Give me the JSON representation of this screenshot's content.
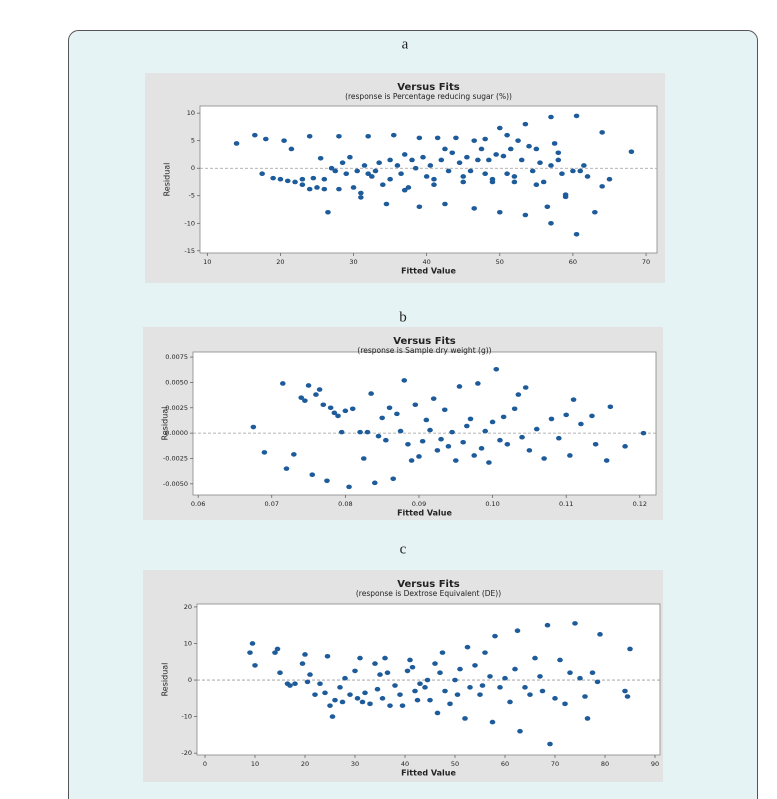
{
  "chart_data": [
    {
      "type": "scatter",
      "label": "a",
      "title": "Versus Fits",
      "subtitle": "(response is Percentage reducing sugar (%))",
      "x_label": "Fitted Value",
      "y_label": "Residual",
      "color": "#1d5b9a",
      "hline": 0,
      "xlim": [
        9,
        71.5
      ],
      "ylim": [
        -15.4,
        11.3
      ],
      "xticks": [
        10,
        20,
        30,
        40,
        50,
        60,
        70
      ],
      "yticks": [
        -15,
        -10,
        -5,
        0,
        5,
        10
      ],
      "x": [
        14,
        16.5,
        18,
        17.5,
        19,
        20,
        20.5,
        21,
        21.5,
        22,
        23,
        23,
        24,
        24,
        24.5,
        25,
        25.5,
        26,
        26,
        26.5,
        27,
        27.5,
        28,
        28,
        28.5,
        29,
        29.5,
        30,
        30.5,
        31,
        31,
        31.5,
        32,
        32,
        32.5,
        33,
        33.5,
        34,
        34.5,
        35,
        35,
        35.5,
        36,
        36.5,
        37,
        37,
        37.5,
        38,
        38.5,
        39,
        39,
        39.5,
        40,
        40.5,
        41,
        41,
        41.5,
        42,
        42.5,
        42.5,
        43,
        43.5,
        44,
        44.5,
        45,
        45,
        45.5,
        46,
        46.5,
        46.5,
        47,
        47.5,
        48,
        48,
        48.5,
        49,
        49,
        49.5,
        50,
        50,
        50.5,
        51,
        51,
        51.5,
        52,
        52,
        52.5,
        53,
        53.5,
        53.5,
        54,
        54.5,
        55,
        55,
        55.5,
        56,
        56.5,
        57,
        57,
        57,
        57.5,
        58,
        58,
        58.5,
        59,
        59,
        60,
        60.5,
        60.5,
        61,
        61.5,
        62,
        63,
        64,
        64,
        65,
        68
      ],
      "values": [
        4.5,
        6,
        5.3,
        -1,
        -1.8,
        -2,
        5,
        -2.3,
        3.5,
        -2.5,
        -3,
        -2,
        -3.8,
        5.8,
        -1.8,
        -3.5,
        1.8,
        -2,
        -3.8,
        -8,
        0,
        -0.5,
        -3.8,
        5.8,
        1,
        -1,
        2,
        -3.5,
        -0.5,
        -4.5,
        -5.3,
        0.5,
        -1,
        5.8,
        -1.5,
        -0.5,
        1,
        -3,
        -6.5,
        1.5,
        -2,
        6,
        0.5,
        -1,
        2.5,
        -4,
        -3.5,
        1.5,
        0,
        -7,
        5.5,
        2,
        -1.5,
        0.5,
        -2,
        -3,
        5.5,
        1.5,
        3.5,
        -6.5,
        -0.5,
        2.8,
        5.5,
        1,
        -1.5,
        -2.5,
        2,
        -0.5,
        5,
        -7.3,
        1.5,
        3.5,
        -1,
        5.3,
        1.5,
        -2,
        -2.5,
        2.5,
        7.3,
        -8,
        2.2,
        -1,
        6,
        3.5,
        -2.5,
        -1.5,
        5,
        1.5,
        -8.5,
        8,
        4,
        -0.5,
        3.5,
        -3,
        1,
        -2.5,
        -7,
        0.5,
        9.3,
        -10,
        4.5,
        2.8,
        1.5,
        -1,
        -4.8,
        -5.2,
        -0.5,
        9.5,
        -12,
        -0.5,
        0.5,
        -1.5,
        -8,
        6.5,
        -3.3,
        -2,
        3
      ]
    },
    {
      "type": "scatter",
      "label": "b",
      "title": "Versus Fits",
      "subtitle": "(response is Sample dry weight (g))",
      "x_label": "Fitted Value",
      "y_label": "Residual",
      "color": "#1d5b9a",
      "hline": 0,
      "xlim": [
        0.0593,
        0.1222
      ],
      "ylim": [
        -0.0061,
        0.008
      ],
      "xticks": [
        0.06,
        0.07,
        0.08,
        0.09,
        {
          "value": 0.1,
          "label": "0.10"
        },
        0.11,
        0.12
      ],
      "yticks": [
        {
          "value": -0.005,
          "label": "-0.0050"
        },
        {
          "value": -0.0025,
          "label": "-0.0025"
        },
        {
          "value": 0,
          "label": "0.0000"
        },
        {
          "value": 0.0025,
          "label": "0.0025"
        },
        {
          "value": 0.005,
          "label": "0.0050"
        },
        {
          "value": 0.0075,
          "label": "0.0075"
        }
      ],
      "x": [
        0.0675,
        0.069,
        0.0715,
        0.072,
        0.073,
        0.074,
        0.0745,
        0.075,
        0.0755,
        0.076,
        0.0765,
        0.077,
        0.0775,
        0.078,
        0.0785,
        0.079,
        0.0795,
        0.08,
        0.0805,
        0.081,
        0.082,
        0.0825,
        0.083,
        0.0835,
        0.084,
        0.0845,
        0.085,
        0.0855,
        0.086,
        0.0865,
        0.087,
        0.0875,
        0.088,
        0.0885,
        0.089,
        0.0895,
        0.09,
        0.0905,
        0.091,
        0.0915,
        0.092,
        0.0925,
        0.093,
        0.0935,
        0.094,
        0.0945,
        0.095,
        0.0955,
        0.096,
        0.0965,
        0.097,
        0.0975,
        0.098,
        0.0985,
        0.099,
        0.0995,
        0.1,
        0.1005,
        0.101,
        0.1015,
        0.102,
        0.103,
        0.1035,
        0.104,
        0.1045,
        0.105,
        0.106,
        0.107,
        0.108,
        0.109,
        0.11,
        0.1105,
        0.111,
        0.112,
        0.1135,
        0.114,
        0.1155,
        0.116,
        0.118,
        0.1205
      ],
      "values": [
        0.0006,
        -0.0019,
        0.0049,
        -0.0035,
        -0.0021,
        0.0035,
        0.0032,
        0.0047,
        -0.0041,
        0.0038,
        0.0043,
        0.0028,
        -0.0047,
        0.0025,
        0.002,
        0.0017,
        0.0001,
        0.0022,
        -0.0053,
        0.0024,
        0.0001,
        -0.0025,
        0.0001,
        0.0039,
        -0.0049,
        -0.0003,
        0.0015,
        -0.0007,
        0.0025,
        -0.0045,
        0.0019,
        0.0002,
        0.0052,
        -0.0011,
        -0.0027,
        0.0028,
        -0.0023,
        -0.0008,
        0.0013,
        0.0003,
        0.0034,
        -0.0017,
        -0.0006,
        0.0023,
        -0.0013,
        0.0001,
        -0.0027,
        0.0046,
        -0.0009,
        0.0007,
        0.0014,
        -0.0022,
        0.0049,
        -0.0015,
        0.0002,
        -0.0029,
        0.0011,
        0.0063,
        -0.0007,
        0.0016,
        -0.0011,
        0.0024,
        0.0038,
        -0.0004,
        0.0045,
        -0.0017,
        0.0004,
        -0.0025,
        0.0014,
        -0.0005,
        0.0018,
        -0.0022,
        0.0033,
        0.0009,
        0.0017,
        -0.0011,
        -0.0027,
        0.0026,
        -0.0013,
        0
      ]
    },
    {
      "type": "scatter",
      "label": "c",
      "title": "Versus Fits",
      "subtitle": "(response is Dextrose Equivalent (DE))",
      "x_label": "Fitted Value",
      "y_label": "Residual",
      "color": "#1d5b9a",
      "hline": 0,
      "xlim": [
        -1.6,
        91
      ],
      "ylim": [
        -20.5,
        20.8
      ],
      "xticks": [
        0,
        10,
        20,
        30,
        40,
        50,
        60,
        70,
        80,
        90
      ],
      "yticks": [
        -20,
        -10,
        0,
        10,
        20
      ],
      "x": [
        9,
        9.5,
        10,
        14,
        14.5,
        15,
        16.5,
        17,
        18,
        19.5,
        20,
        20.5,
        21,
        22,
        23,
        24,
        24.5,
        25,
        25.5,
        26,
        27,
        27.5,
        28,
        29,
        30,
        30.5,
        31,
        31.5,
        32,
        33,
        34,
        34.5,
        35,
        35.5,
        36,
        36.5,
        37,
        38,
        39,
        39.5,
        40.5,
        41,
        41.5,
        42,
        42.5,
        43,
        44,
        44.5,
        45,
        46,
        46.5,
        47,
        47.5,
        48,
        49,
        50,
        50.5,
        51,
        52,
        52.5,
        53,
        54,
        55,
        55.5,
        56,
        57,
        57.5,
        58,
        59,
        60,
        61,
        62,
        62.5,
        63,
        64,
        65,
        66,
        67,
        67.5,
        68.5,
        69,
        70,
        71,
        72,
        73,
        74,
        75,
        76,
        76.5,
        77.5,
        78.5,
        79,
        84,
        85,
        84.5
      ],
      "values": [
        7.5,
        10,
        4,
        7.5,
        8.5,
        2,
        -1,
        -1.5,
        -1,
        4.5,
        7,
        -0.5,
        1.5,
        -4,
        -1,
        -3.5,
        6.5,
        -7,
        -10,
        -5.5,
        -2,
        -6,
        0.5,
        -4,
        2.5,
        -5,
        6,
        -6,
        -3.5,
        -6.5,
        4.5,
        -2.5,
        1.5,
        -5,
        6,
        2,
        -7,
        -1.5,
        -4,
        -7,
        2.5,
        5.5,
        3.5,
        -3,
        -5.5,
        -1,
        -2,
        0,
        -5.5,
        4.5,
        -9,
        2,
        7.5,
        -3,
        -6.5,
        0,
        -4,
        3,
        -10.5,
        9,
        -2,
        4,
        -4,
        -1.5,
        7.5,
        1,
        -11.5,
        12,
        -2,
        0.5,
        -6,
        3,
        13.5,
        -14,
        -2,
        -4,
        6,
        1,
        -3,
        15,
        -17.5,
        -5,
        5.5,
        -6.5,
        2,
        15.5,
        0.5,
        -4.5,
        -10.5,
        2,
        -0.5,
        12.5,
        -3,
        8.5,
        -4.5
      ]
    }
  ]
}
